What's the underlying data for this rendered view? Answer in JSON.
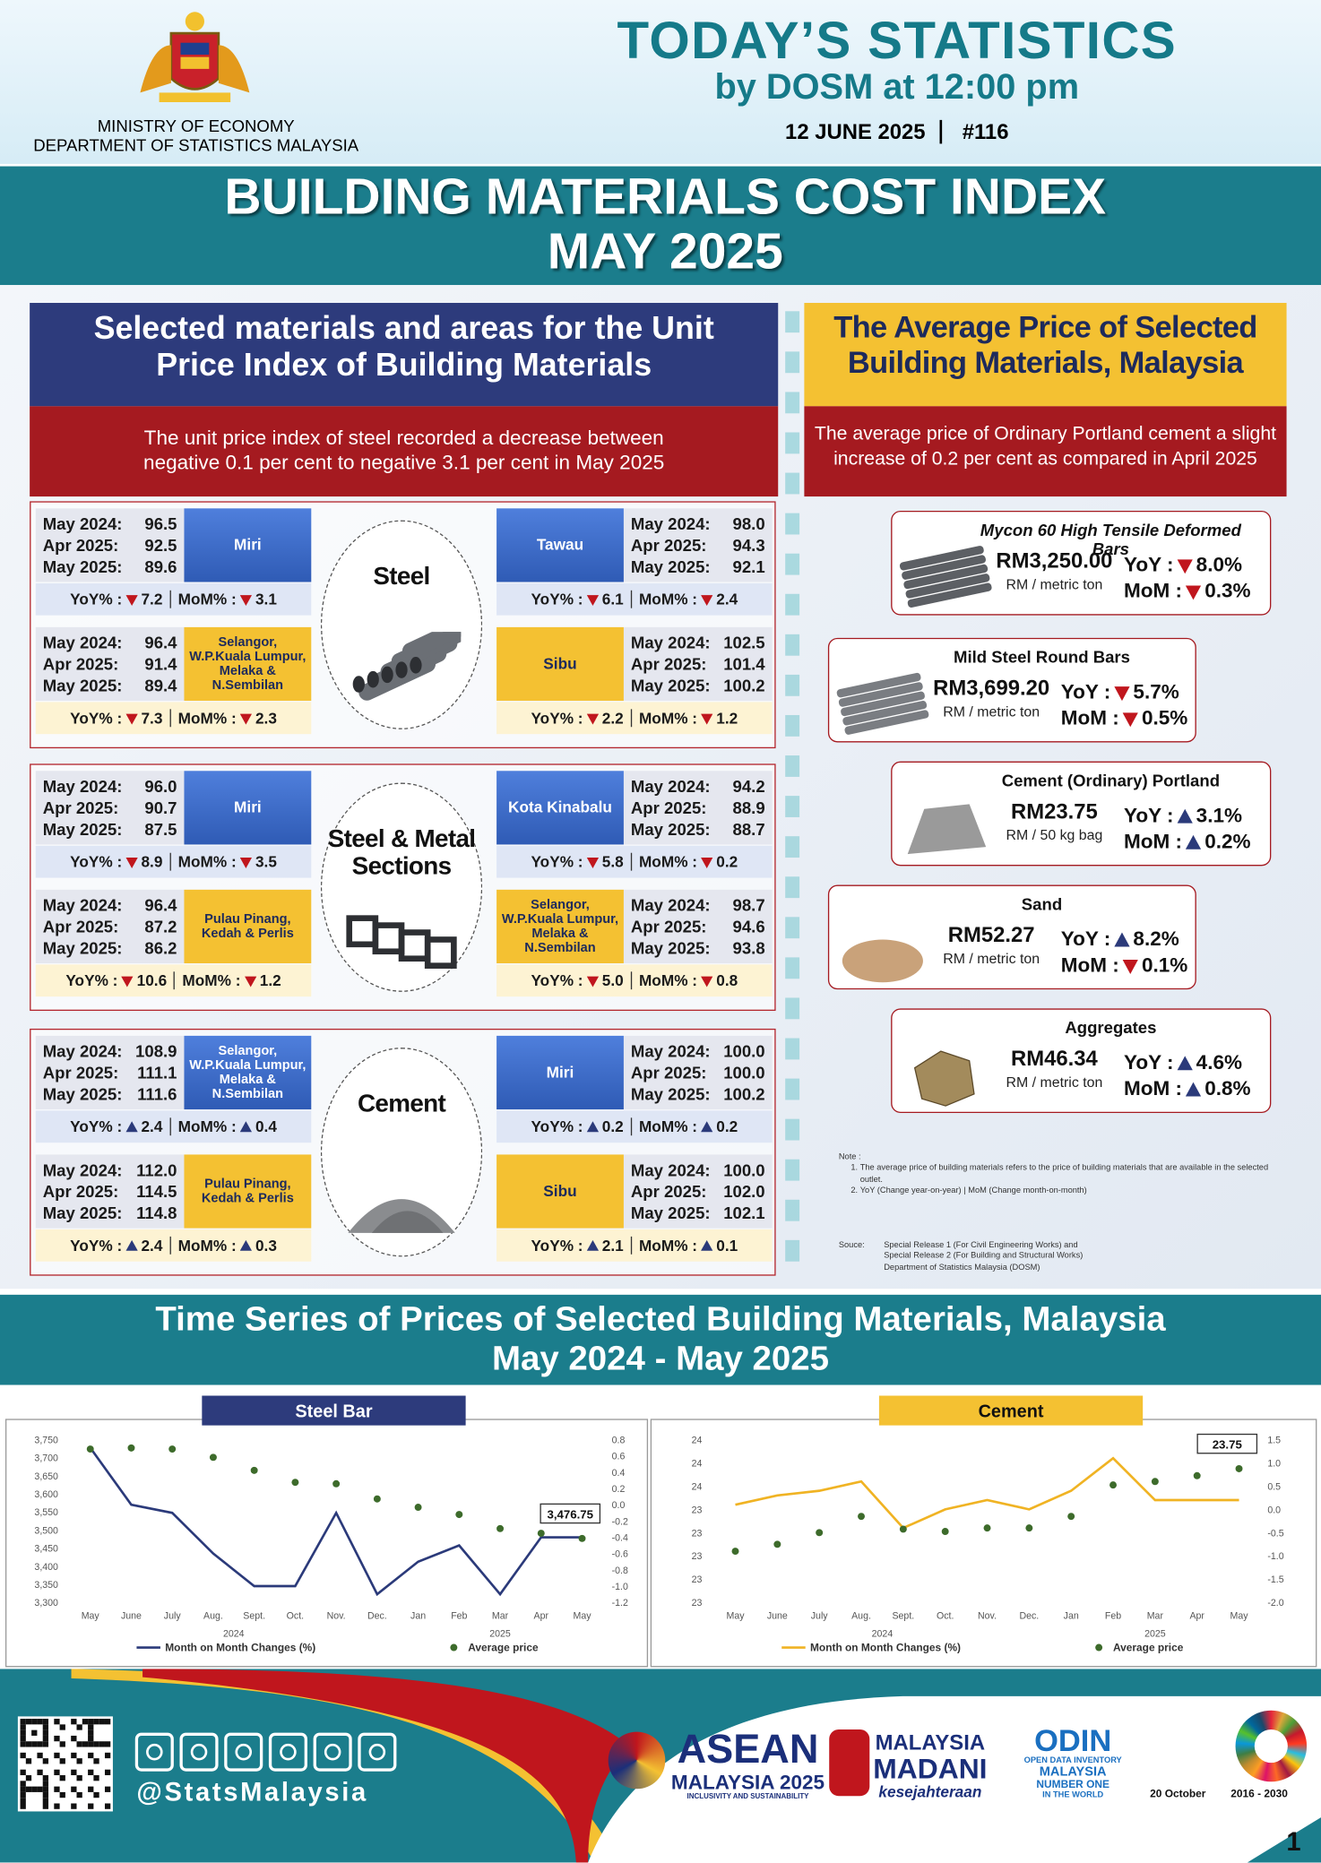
{
  "header": {
    "ministry": "MINISTRY OF ECONOMY",
    "department": "DEPARTMENT OF STATISTICS MALAYSIA",
    "title": "TODAY’S STATISTICS",
    "subtitle": "by DOSM at 12:00 pm",
    "date": "12 JUNE 2025",
    "issue": "#116"
  },
  "banner": {
    "title": "BUILDING MATERIALS COST INDEX",
    "period": "MAY 2025"
  },
  "index_panel": {
    "title": "Selected materials and areas for the Unit Price Index of Building Materials",
    "summary": "The unit price index of steel recorded a decrease between negative 0.1 per cent to negative 3.1 per cent in May 2025",
    "period_labels": [
      "May 2024:",
      "Apr 2025:",
      "May 2025:"
    ],
    "yoy_label": "YoY% :",
    "mom_label": "MoM% :",
    "groups": [
      {
        "material": "Steel",
        "cards": [
          {
            "area": "Miri",
            "values": [
              "96.5",
              "92.5",
              "89.6"
            ],
            "yoy": "7.2",
            "yoy_trend": "down",
            "mom": "3.1",
            "mom_trend": "down"
          },
          {
            "area": "Tawau",
            "values": [
              "98.0",
              "94.3",
              "92.1"
            ],
            "yoy": "6.1",
            "yoy_trend": "down",
            "mom": "2.4",
            "mom_trend": "down"
          },
          {
            "area": "Selangor, W.P.Kuala Lumpur, Melaka & N.Sembilan",
            "values": [
              "96.4",
              "91.4",
              "89.4"
            ],
            "yoy": "7.3",
            "yoy_trend": "down",
            "mom": "2.3",
            "mom_trend": "down"
          },
          {
            "area": "Sibu",
            "values": [
              "102.5",
              "101.4",
              "100.2"
            ],
            "yoy": "2.2",
            "yoy_trend": "down",
            "mom": "1.2",
            "mom_trend": "down"
          }
        ]
      },
      {
        "material": "Steel & Metal Sections",
        "cards": [
          {
            "area": "Miri",
            "values": [
              "96.0",
              "90.7",
              "87.5"
            ],
            "yoy": "8.9",
            "yoy_trend": "down",
            "mom": "3.5",
            "mom_trend": "down"
          },
          {
            "area": "Kota Kinabalu",
            "values": [
              "94.2",
              "88.9",
              "88.7"
            ],
            "yoy": "5.8",
            "yoy_trend": "down",
            "mom": "0.2",
            "mom_trend": "down"
          },
          {
            "area": "Pulau Pinang, Kedah & Perlis",
            "values": [
              "96.4",
              "87.2",
              "86.2"
            ],
            "yoy": "10.6",
            "yoy_trend": "down",
            "mom": "1.2",
            "mom_trend": "down"
          },
          {
            "area": "Selangor, W.P.Kuala Lumpur, Melaka & N.Sembilan",
            "values": [
              "98.7",
              "94.6",
              "93.8"
            ],
            "yoy": "5.0",
            "yoy_trend": "down",
            "mom": "0.8",
            "mom_trend": "down"
          }
        ]
      },
      {
        "material": "Cement",
        "cards": [
          {
            "area": "Selangor, W.P.Kuala Lumpur, Melaka & N.Sembilan",
            "values": [
              "108.9",
              "111.1",
              "111.6"
            ],
            "yoy": "2.4",
            "yoy_trend": "up",
            "mom": "0.4",
            "mom_trend": "up"
          },
          {
            "area": "Miri",
            "values": [
              "100.0",
              "100.0",
              "100.2"
            ],
            "yoy": "0.2",
            "yoy_trend": "up",
            "mom": "0.2",
            "mom_trend": "up"
          },
          {
            "area": "Pulau Pinang, Kedah & Perlis",
            "values": [
              "112.0",
              "114.5",
              "114.8"
            ],
            "yoy": "2.4",
            "yoy_trend": "up",
            "mom": "0.3",
            "mom_trend": "up"
          },
          {
            "area": "Sibu",
            "values": [
              "100.0",
              "102.0",
              "102.1"
            ],
            "yoy": "2.1",
            "yoy_trend": "up",
            "mom": "0.1",
            "mom_trend": "up"
          }
        ]
      }
    ]
  },
  "price_panel": {
    "title": "The Average Price of Selected Building Materials, Malaysia",
    "summary": "The average price of Ordinary Portland cement a slight increase of 0.2 per cent as compared in April 2025",
    "yoy_label": "YoY :",
    "mom_label": "MoM :",
    "items": [
      {
        "name": "Mycon 60 High Tensile Deformed Bars",
        "price": "RM3,250.00",
        "unit": "RM / metric ton",
        "yoy": "8.0%",
        "yoy_trend": "down",
        "mom": "0.3%",
        "mom_trend": "down"
      },
      {
        "name": "Mild Steel Round Bars",
        "price": "RM3,699.20",
        "unit": "RM / metric ton",
        "yoy": "5.7%",
        "yoy_trend": "down",
        "mom": "0.5%",
        "mom_trend": "down"
      },
      {
        "name": "Cement (Ordinary) Portland",
        "price": "RM23.75",
        "unit": "RM / 50 kg bag",
        "yoy": "3.1%",
        "yoy_trend": "up",
        "mom": "0.2%",
        "mom_trend": "up"
      },
      {
        "name": "Sand",
        "price": "RM52.27",
        "unit": "RM / metric ton",
        "yoy": "8.2%",
        "yoy_trend": "up",
        "mom": "0.1%",
        "mom_trend": "down"
      },
      {
        "name": "Aggregates",
        "price": "RM46.34",
        "unit": "RM / metric ton",
        "yoy": "4.6%",
        "yoy_trend": "up",
        "mom": "0.8%",
        "mom_trend": "up"
      }
    ]
  },
  "notes": {
    "heading": "Note :",
    "items": [
      "The average price of building materials refers to the price of building materials that are available in the selected outlet.",
      "YoY (Change year-on-year) | MoM (Change month-on-month)"
    ],
    "source_label": "Souce:",
    "source_lines": [
      "Special Release 1 (For Civil Engineering Works) and",
      "Special Release 2 (For Building and Structural Works)",
      "Department of Statistics Malaysia (DOSM)"
    ]
  },
  "time_series": {
    "title": "Time Series of Prices of Selected Building Materials, Malaysia",
    "period": "May 2024 - May 2025"
  },
  "chart_data": [
    {
      "type": "line",
      "title": "Steel Bar",
      "categories": [
        "May",
        "June",
        "July",
        "Aug.",
        "Sept.",
        "Oct.",
        "Nov.",
        "Dec.",
        "Jan",
        "Feb",
        "Mar",
        "Apr",
        "May"
      ],
      "year_labels": [
        "2024",
        "2025"
      ],
      "series": [
        {
          "name": "Month on Month Changes (%)",
          "style": "line",
          "axis": "y2",
          "color": "#2b3a7a",
          "values": [
            0.7,
            0.0,
            -0.1,
            -0.6,
            -1.0,
            -1.0,
            -0.1,
            -1.1,
            -0.7,
            -0.5,
            -1.1,
            -0.4,
            -0.4
          ]
        },
        {
          "name": "Average price",
          "style": "markers",
          "axis": "y",
          "color": "#3d6b2b",
          "values": [
            3724,
            3727,
            3724,
            3701,
            3665,
            3632,
            3628,
            3586,
            3563,
            3543,
            3504,
            3491,
            3476.75
          ],
          "value_labels": [
            null,
            null,
            null,
            null,
            null,
            null,
            null,
            null,
            null,
            null,
            null,
            null,
            "3,476.75"
          ]
        }
      ],
      "ylim": [
        3300,
        3750
      ],
      "yticks": [
        {
          "value": 3300,
          "label": "3,300"
        },
        {
          "value": 3350,
          "label": "3,350"
        },
        {
          "value": 3400,
          "label": "3,400"
        },
        {
          "value": 3450,
          "label": "3,450"
        },
        {
          "value": 3500,
          "label": "3,500"
        },
        {
          "value": 3550,
          "label": "3,550"
        },
        {
          "value": 3600,
          "label": "3,600"
        },
        {
          "value": 3650,
          "label": "3,650"
        },
        {
          "value": 3700,
          "label": "3,700"
        },
        {
          "value": 3750,
          "label": "3,750"
        }
      ],
      "y2lim": [
        -1.2,
        0.8
      ],
      "y2ticks": [
        -1.2,
        {
          "value": -1,
          "label": "-1.0"
        },
        -0.8,
        -0.6,
        -0.4,
        -0.2,
        {
          "value": 0,
          "label": "0.0"
        },
        0.2,
        0.4,
        0.6,
        0.8
      ]
    },
    {
      "type": "line",
      "title": "Cement",
      "categories": [
        "May",
        "June",
        "July",
        "Aug.",
        "Sept.",
        "Oct.",
        "Nov.",
        "Dec.",
        "Jan",
        "Feb",
        "Mar",
        "Apr",
        "May"
      ],
      "year_labels": [
        "2024",
        "2025"
      ],
      "series": [
        {
          "name": "Month on Month Changes (%)",
          "style": "line",
          "axis": "y2",
          "color": "#f0b323",
          "values": [
            0.1,
            0.3,
            0.4,
            0.6,
            -0.4,
            0.0,
            0.2,
            0.0,
            0.4,
            1.1,
            0.2,
            0.2,
            0.2
          ]
        },
        {
          "name": "Average price",
          "style": "markers",
          "axis": "y",
          "color": "#3d6b2b",
          "values": [
            23.04,
            23.1,
            23.2,
            23.34,
            23.23,
            23.21,
            23.24,
            23.24,
            23.34,
            23.61,
            23.64,
            23.69,
            23.75
          ],
          "value_labels": [
            null,
            null,
            null,
            null,
            null,
            null,
            null,
            null,
            null,
            null,
            null,
            null,
            "23.75"
          ]
        }
      ],
      "ylim": [
        22.6,
        24
      ],
      "yticks": [
        {
          "value": 22.6,
          "label": "23"
        },
        {
          "value": 22.8,
          "label": "23"
        },
        23,
        {
          "value": 23.2,
          "label": "23"
        },
        {
          "value": 23.4,
          "label": "23"
        },
        {
          "value": 23.6,
          "label": "24"
        },
        {
          "value": 23.8,
          "label": "24"
        },
        24
      ],
      "y2lim": [
        -2,
        1.5
      ],
      "y2ticks": [
        {
          "value": -2,
          "label": "-2.0"
        },
        -1.5,
        {
          "value": -1,
          "label": "-1.0"
        },
        -0.5,
        {
          "value": 0,
          "label": "0.0"
        },
        0.5,
        {
          "value": 1,
          "label": "1.0"
        },
        1.5
      ]
    }
  ],
  "footer": {
    "handle": "@StatsMalaysia",
    "logos": [
      [
        "ASEAN",
        "MALAYSIA 2025",
        "INCLUSIVITY AND SUSTAINABILITY"
      ],
      [
        "MALAYSIA",
        "MADANI",
        "kesejahteraan"
      ],
      [
        "ODIN",
        "OPEN DATA INVENTORY",
        "MALAYSIA",
        "NUMBER ONE",
        "IN THE WORLD"
      ],
      [
        "20 October"
      ],
      [
        "2016 - 2030"
      ]
    ],
    "page": "1"
  }
}
